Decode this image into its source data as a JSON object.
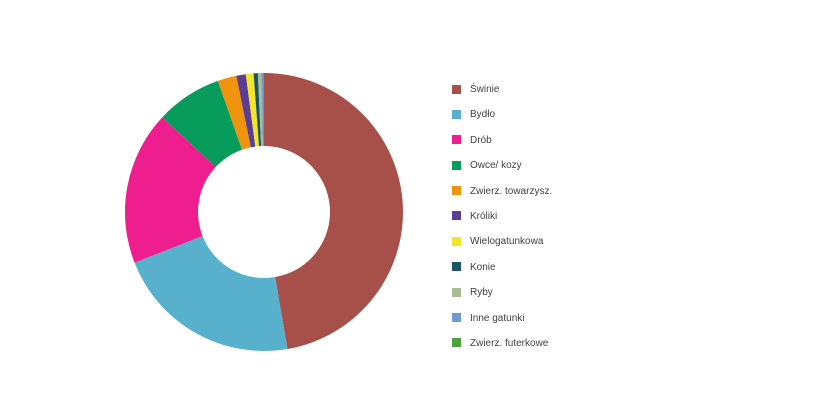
{
  "chart_data": {
    "type": "pie",
    "subtype": "donut",
    "title": "",
    "labels": [
      "Świnie",
      "Bydło",
      "Drób",
      "Owce/ kozy",
      "Zwierz. towarzysz.",
      "Króliki",
      "Wielogatunkowa",
      "Konie",
      "Ryby",
      "Inne gatunki",
      "Zwierz. futerkowe"
    ],
    "slice_ids": [
      "swinie",
      "bydlo",
      "drob",
      "owce-kozy",
      "zwierz-towarzysz",
      "kroliki",
      "wielogatunkowa",
      "konie",
      "ryby",
      "inne-gatunki",
      "zwierz-futerkowe"
    ],
    "values_percent": [
      47.4,
      21.8,
      17.9,
      7.7,
      2.2,
      1.1,
      0.9,
      0.5,
      0.4,
      0.2,
      0.1
    ],
    "colors": [
      "#a75049",
      "#58b1cc",
      "#ee1e8f",
      "#089c5c",
      "#f0930f",
      "#5c3d95",
      "#f3e52a",
      "#1d5568",
      "#a7bd92",
      "#6b9bd2",
      "#4aa33c"
    ],
    "start_angle_deg": 0,
    "direction": "clockwise",
    "legend_position": "right",
    "hole_ratio": 0.475,
    "background_color": "#ffffff",
    "legend_text_color": "#3f3f3f"
  }
}
